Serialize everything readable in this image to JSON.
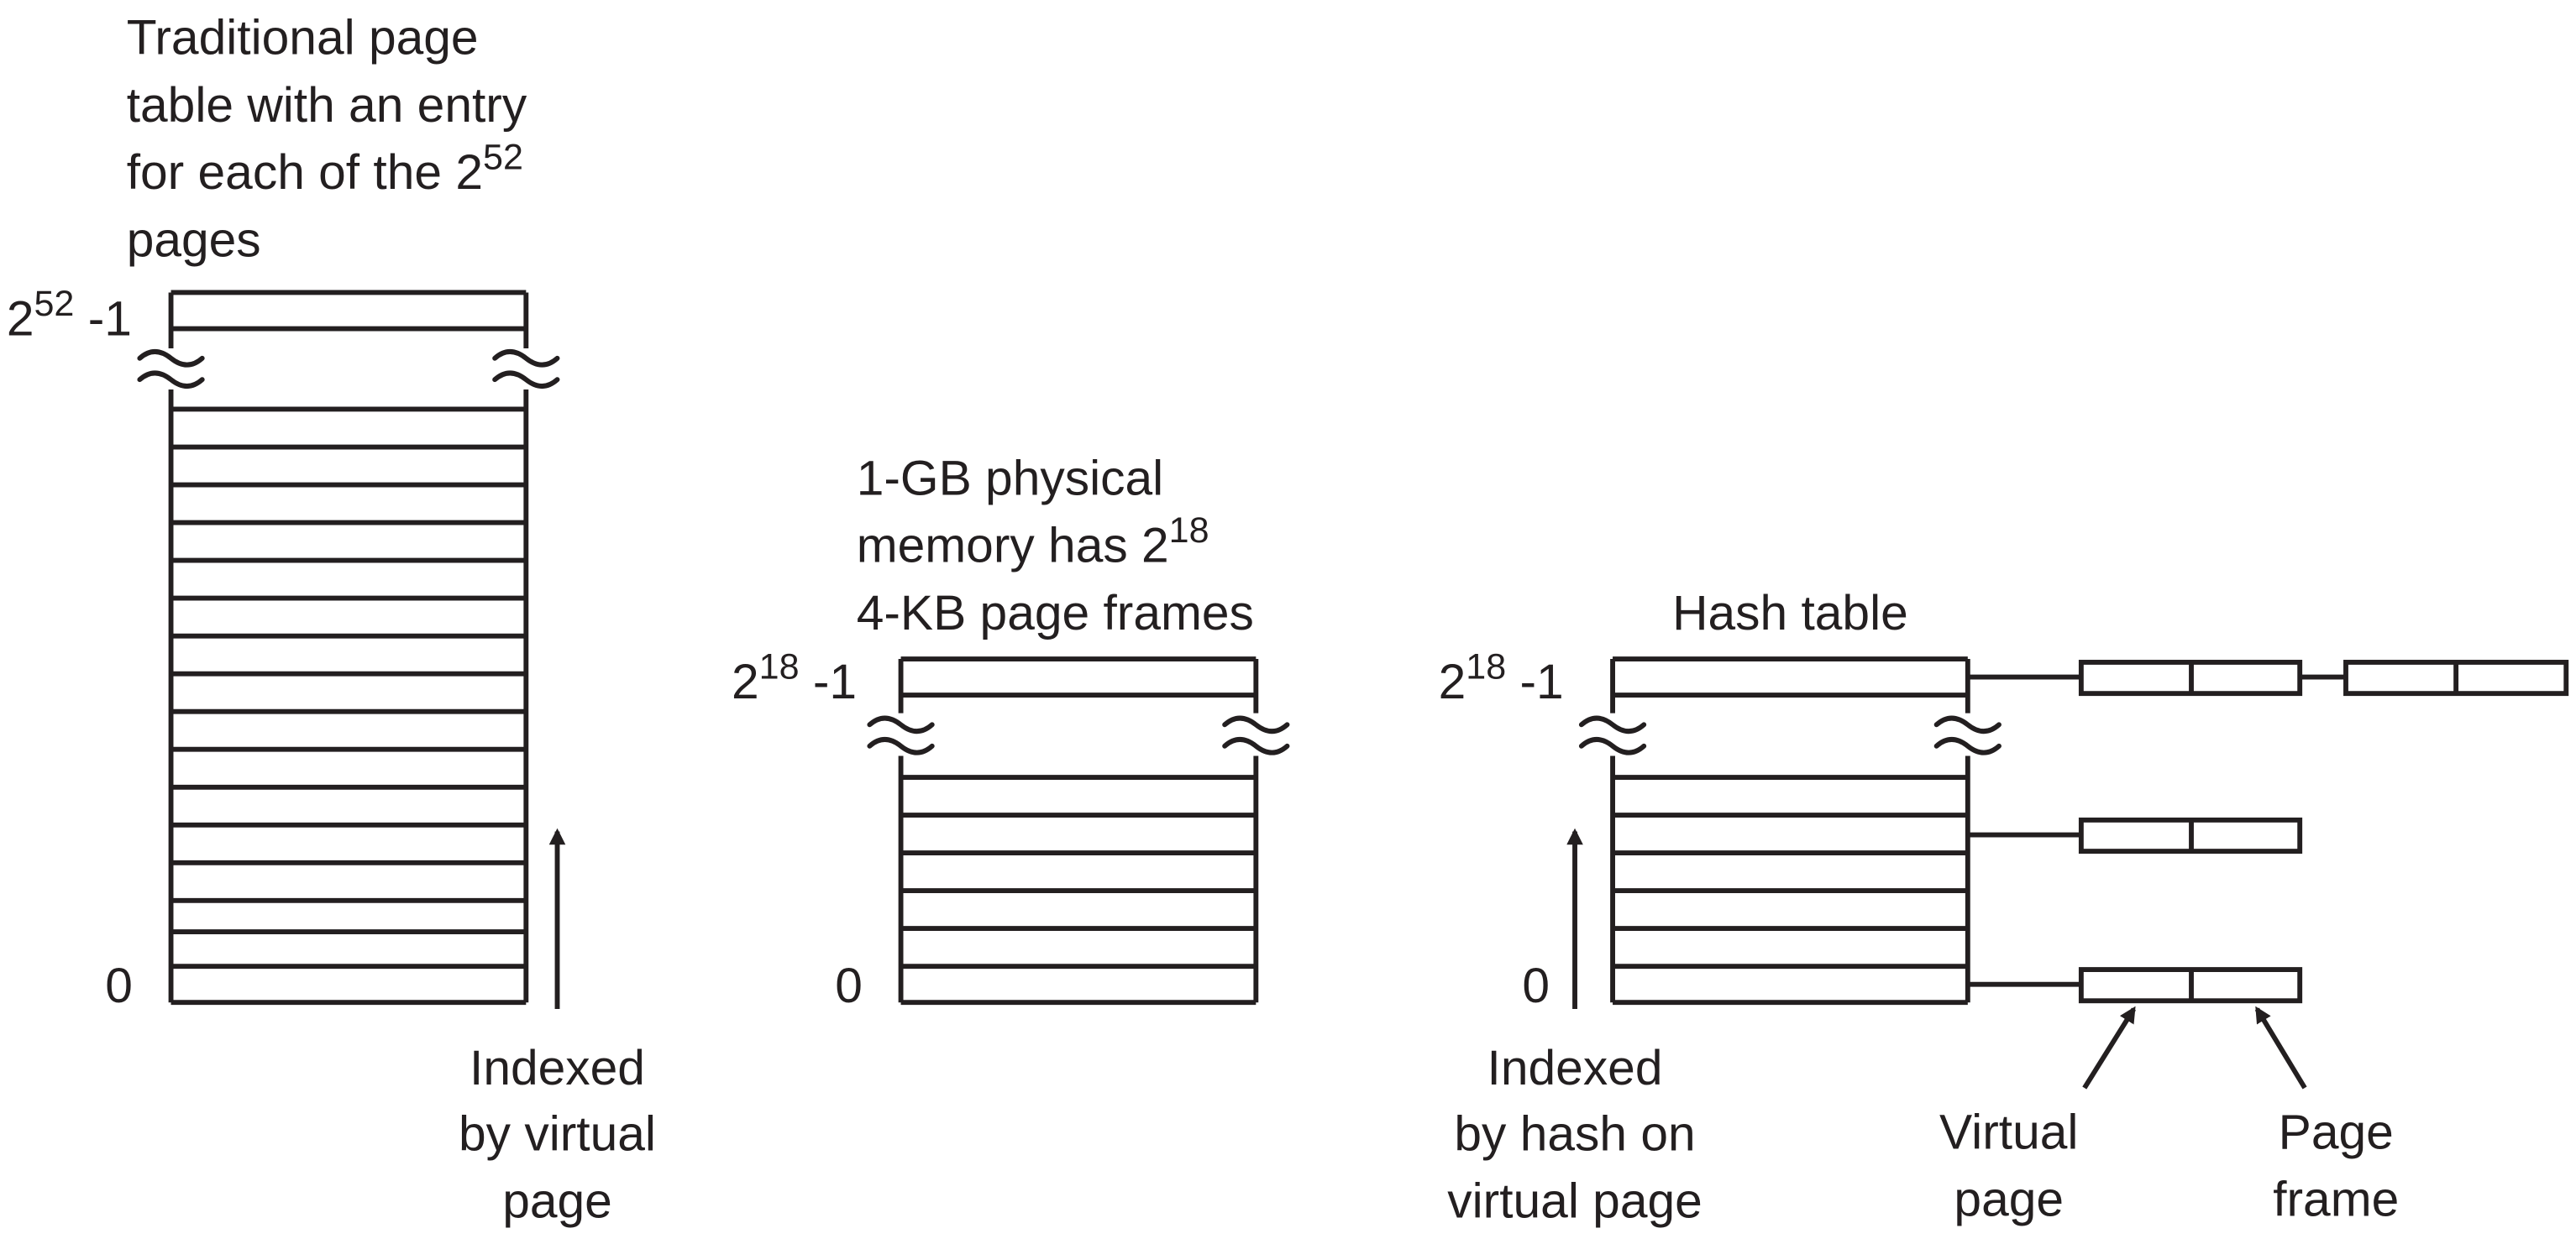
{
  "left_panel": {
    "caption_line1": "Traditional page",
    "caption_line2": "table with an entry",
    "caption_line3_prefix": "for each of the 2",
    "caption_line3_sup": "52",
    "caption_line4": "pages",
    "top_index_base": "2",
    "top_index_sup": "52",
    "top_index_suffix": " -1",
    "bottom_index": "0",
    "arrow_label_line1": "Indexed",
    "arrow_label_line2": "by virtual",
    "arrow_label_line3": "page"
  },
  "middle_panel": {
    "caption_line1": "1-GB physical",
    "caption_line2_prefix": "memory has 2",
    "caption_line2_sup": "18",
    "caption_line3": "4-KB page frames",
    "top_index_base": "2",
    "top_index_sup": "18",
    "top_index_suffix": " -1",
    "bottom_index": "0"
  },
  "right_panel": {
    "caption": "Hash table",
    "top_index_base": "2",
    "top_index_sup": "18",
    "top_index_suffix": " -1",
    "bottom_index": "0",
    "arrow_label_line1": "Indexed",
    "arrow_label_line2": "by hash on",
    "arrow_label_line3": "virtual page",
    "entry_label_virtual_line1": "Virtual",
    "entry_label_virtual_line2": "page",
    "entry_label_frame_line1": "Page",
    "entry_label_frame_line2": "frame"
  }
}
